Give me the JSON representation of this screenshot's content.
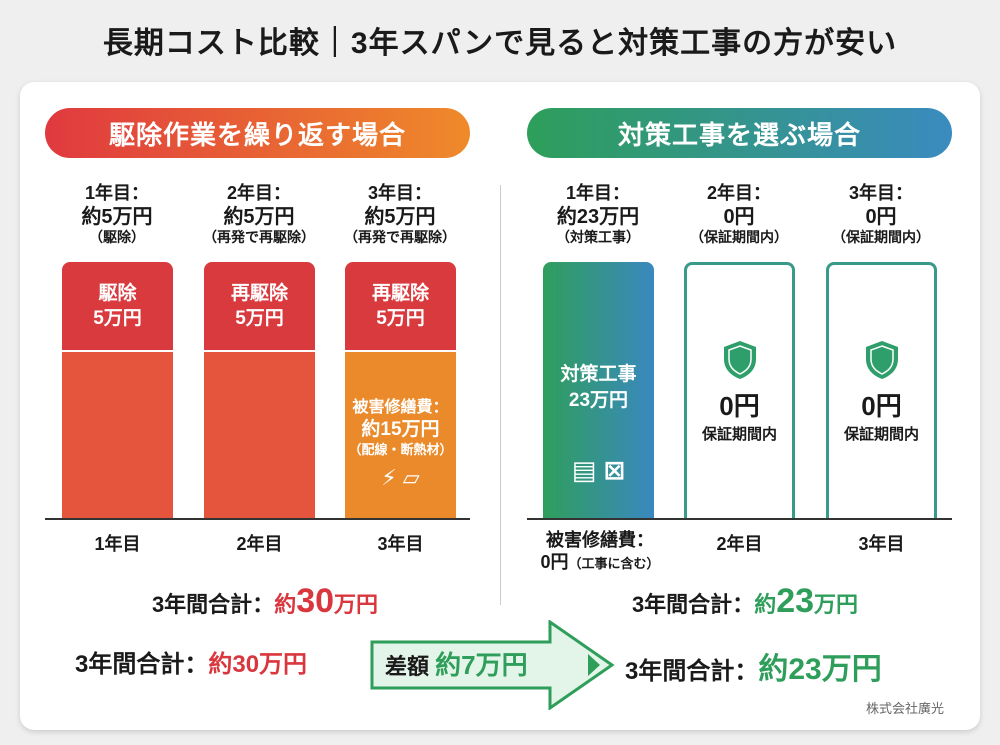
{
  "title": "長期コスト比較｜3年スパンで見ると対策工事の方が安い",
  "left": {
    "header": "駆除作業を繰り返す場合",
    "years": [
      {
        "label": "1年目：",
        "amount": "約5万円",
        "note": "（駆除）",
        "bar_title": "駆除",
        "bar_amount": "5万円",
        "axis": "1年目"
      },
      {
        "label": "2年目：",
        "amount": "約5万円",
        "note": "（再発で再駆除）",
        "bar_title": "再駆除",
        "bar_amount": "5万円",
        "axis": "2年目"
      },
      {
        "label": "3年目：",
        "amount": "約5万円",
        "note": "（再発で再駆除）",
        "bar_title": "再駆除",
        "bar_amount": "5万円",
        "axis": "3年目",
        "damage_title": "被害修繕費：",
        "damage_amount": "約15万円",
        "damage_note": "（配線・断熱材）"
      }
    ],
    "total_label": "3年間合計：",
    "total_prefix": "約",
    "total_value": "30",
    "total_unit": "万円"
  },
  "right": {
    "header": "対策工事を選ぶ場合",
    "years": [
      {
        "label": "1年目：",
        "amount": "約23万円",
        "note": "（対策工事）",
        "bar_title": "対策工事",
        "bar_amount": "23万円",
        "axis": "被害修繕費：",
        "axis2": "0円",
        "axis2_note": "（工事に含む）"
      },
      {
        "label": "2年目：",
        "amount": "0円",
        "note": "（保証期間内）",
        "bar_amount": "0円",
        "bar_note": "保証期間内",
        "axis": "2年目"
      },
      {
        "label": "3年目：",
        "amount": "0円",
        "note": "（保証期間内）",
        "bar_amount": "0円",
        "bar_note": "保証期間内",
        "axis": "3年目"
      }
    ],
    "total_label": "3年間合計：",
    "total_prefix": "約",
    "total_value": "23",
    "total_unit": "万円"
  },
  "summary": {
    "left": "3年間合計：",
    "left_value": "約30万円",
    "diff_label": "差額",
    "diff_value": "約7万円",
    "right": "3年間合計：",
    "right_value": "約23万円"
  },
  "footer": "株式会社廣光",
  "colors": {
    "red": "#d9363e",
    "orange": "#ea8a2a",
    "green": "#2e9e5a",
    "blue": "#3a88bf"
  }
}
